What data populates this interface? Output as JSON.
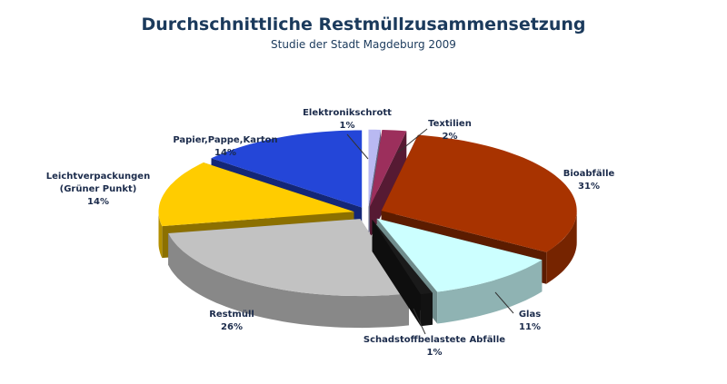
{
  "chart_data": {
    "type": "pie3d",
    "title": "Durchschnittliche Restmüllzusammensetzung",
    "subtitle": "Studie der Stadt Magdeburg 2009",
    "categories": [
      "Elektronikschrott",
      "Textilien",
      "Bioabfälle",
      "Glas",
      "Schadstoffbelastete Abfälle",
      "Restmüll",
      "Leichtverpackungen (Grüner Punkt)",
      "Papier,Pappe,Karton"
    ],
    "values": [
      1,
      2,
      31,
      11,
      1,
      26,
      14,
      14
    ],
    "value_labels": [
      "1%",
      "2%",
      "31%",
      "11%",
      "1%",
      "26%",
      "14%",
      "14%"
    ],
    "colors": [
      "#b9b9f2",
      "#9c2f5c",
      "#a83300",
      "#ccffff",
      "#1a1a1a",
      "#c2c2c2",
      "#ffcc00",
      "#2446d8"
    ]
  }
}
